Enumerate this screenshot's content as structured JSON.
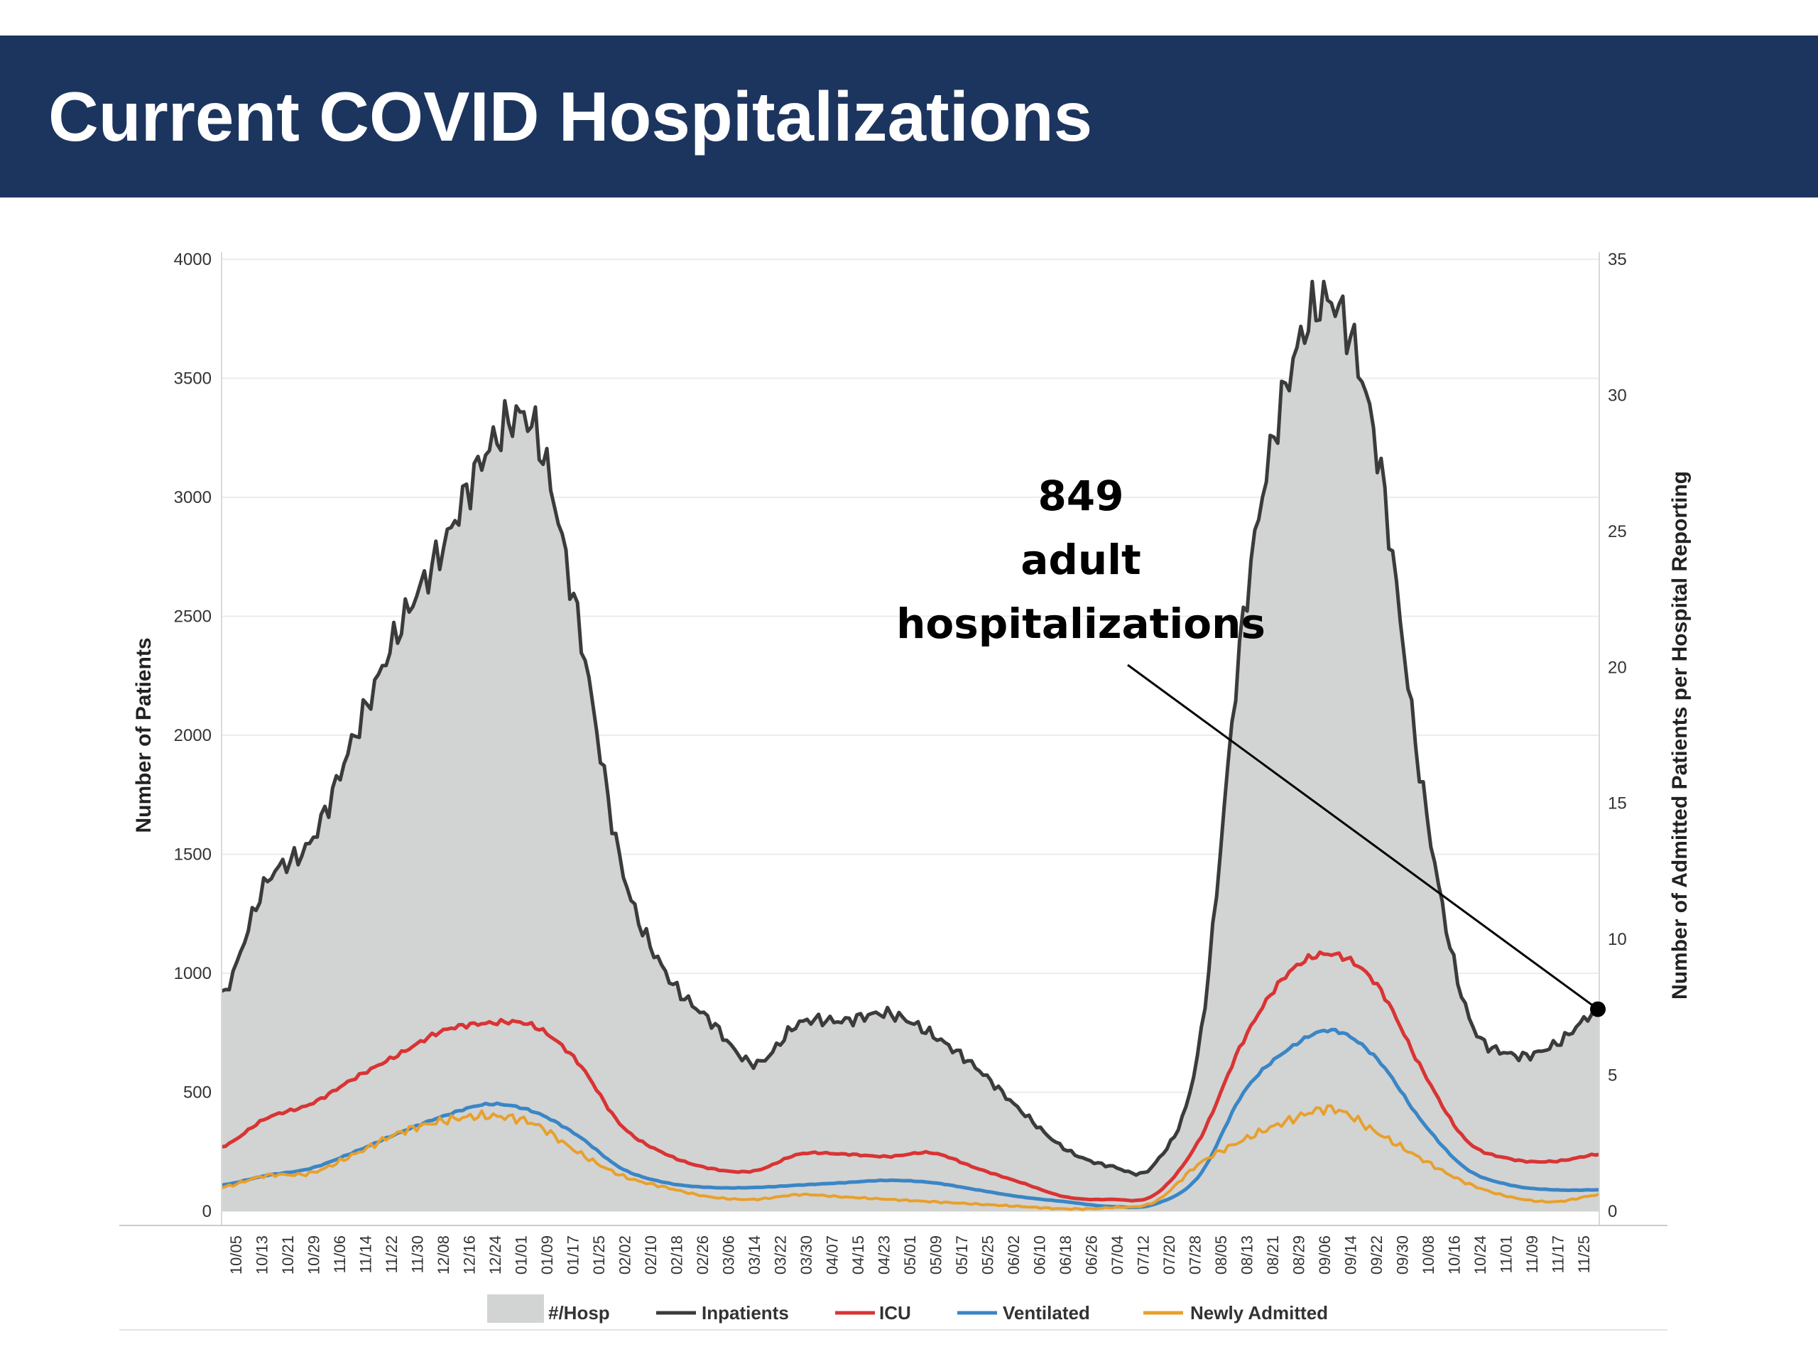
{
  "title": "Current COVID Hospitalizations",
  "colors": {
    "header_bg": "#1c355e",
    "hosp_fill": "#d2d3d3",
    "inpatients": "#3b3b3b",
    "icu": "#d93434",
    "ventilated": "#3a86c6",
    "newly_admitted": "#e8a02b"
  },
  "chart_data": {
    "type": "area",
    "ylabel": "Number of Patients",
    "y2label": "Number of Admitted Patients per Hospital Reporting",
    "ylim": [
      0,
      4000
    ],
    "yticks": [
      0,
      500,
      1000,
      1500,
      2000,
      2500,
      3000,
      3500,
      4000
    ],
    "y2lim": [
      0,
      35
    ],
    "y2ticks": [
      0,
      5,
      10,
      15,
      20,
      25,
      30,
      35
    ],
    "grid": true,
    "legend_position": "bottom",
    "x_tick_labels": [
      "10/05",
      "10/13",
      "10/21",
      "10/29",
      "11/06",
      "11/14",
      "11/22",
      "11/30",
      "12/08",
      "12/16",
      "12/24",
      "01/01",
      "01/09",
      "01/17",
      "01/25",
      "02/02",
      "02/10",
      "02/18",
      "02/26",
      "03/06",
      "03/14",
      "03/22",
      "03/30",
      "04/07",
      "04/15",
      "04/23",
      "05/01",
      "05/09",
      "05/17",
      "05/25",
      "06/02",
      "06/10",
      "06/18",
      "06/26",
      "07/04",
      "07/12",
      "07/20",
      "07/28",
      "08/05",
      "08/13",
      "08/21",
      "08/29",
      "09/06",
      "09/14",
      "09/22",
      "09/30",
      "10/08",
      "10/16",
      "10/24",
      "11/01",
      "11/09",
      "11/17",
      "11/25"
    ],
    "legend": [
      "#/Hosp",
      "Inpatients",
      "ICU",
      "Ventilated",
      "Newly Admitted"
    ],
    "series": [
      {
        "name": "#/Hosp",
        "kind": "area",
        "values": [
          900,
          1380,
          1550,
          2000,
          2450,
          2800,
          3200,
          3300,
          2500,
          1450,
          1000,
          800,
          620,
          790,
          800,
          830,
          740,
          600,
          420,
          260,
          190,
          200,
          700,
          2500,
          3500,
          3820,
          3200,
          1800,
          850,
          660,
          700,
          849
        ]
      },
      {
        "name": "Inpatients",
        "kind": "line",
        "values": [
          900,
          1380,
          1550,
          2000,
          2450,
          2800,
          3200,
          3300,
          2500,
          1450,
          1000,
          800,
          620,
          790,
          800,
          830,
          740,
          600,
          420,
          260,
          190,
          200,
          700,
          2500,
          3500,
          3820,
          3200,
          1800,
          850,
          660,
          700,
          849
        ]
      },
      {
        "name": "ICU",
        "kind": "line",
        "values": [
          270,
          390,
          450,
          560,
          660,
          760,
          790,
          780,
          630,
          360,
          240,
          180,
          170,
          240,
          240,
          230,
          245,
          180,
          120,
          60,
          50,
          70,
          300,
          720,
          1000,
          1080,
          950,
          600,
          300,
          220,
          210,
          240
        ]
      },
      {
        "name": "Ventilated",
        "kind": "line",
        "values": [
          110,
          150,
          180,
          250,
          330,
          400,
          450,
          420,
          320,
          180,
          120,
          100,
          100,
          110,
          120,
          130,
          120,
          90,
          60,
          40,
          20,
          30,
          150,
          500,
          680,
          760,
          640,
          380,
          180,
          110,
          90,
          90
        ]
      },
      {
        "name": "Newly Admitted",
        "kind": "line",
        "values": [
          100,
          150,
          160,
          240,
          330,
          380,
          400,
          370,
          250,
          150,
          100,
          60,
          50,
          70,
          60,
          50,
          40,
          30,
          20,
          10,
          15,
          40,
          200,
          300,
          380,
          430,
          330,
          220,
          120,
          60,
          40,
          70
        ]
      }
    ],
    "annotations": [
      {
        "lines": [
          "849",
          "adult",
          "hospitalizations"
        ],
        "points_to": "11/25 Inpatients",
        "value": 849
      }
    ]
  }
}
